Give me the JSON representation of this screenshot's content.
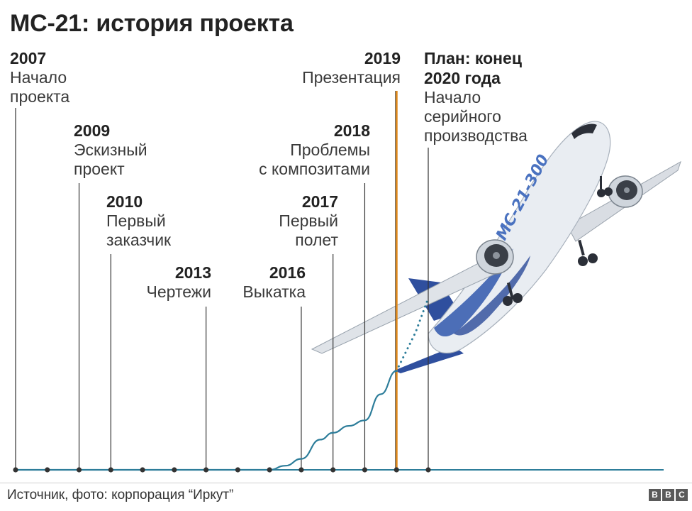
{
  "title": "МС-21: история проекта",
  "source": "Источник, фото: корпорация “Иркут”",
  "brand": [
    "B",
    "B",
    "C"
  ],
  "colors": {
    "curve": "#2d7d9a",
    "axis": "#2d7d9a",
    "presentation_line": "#e0891a",
    "tick": "#333333",
    "plane_body": "#e9edf2",
    "plane_blue": "#2f4f9e"
  },
  "milestones": [
    {
      "year": "2007",
      "label": "Начало\nпроекта"
    },
    {
      "year": "2009",
      "label": "Эскизный\nпроект"
    },
    {
      "year": "2010",
      "label": "Первый\nзаказчик"
    },
    {
      "year": "2013",
      "label": "Чертежи"
    },
    {
      "year": "2016",
      "label": "Выкатка"
    },
    {
      "year": "2017",
      "label": "Первый\nполет"
    },
    {
      "year": "2018",
      "label": "Проблемы\nс композитами"
    },
    {
      "year": "2019",
      "label": "Презентация"
    },
    {
      "year": "План: конец\n2020 года",
      "label": "Начало\nсерийного\nпроизводства"
    }
  ],
  "chart_data": {
    "type": "line",
    "title": "МС-21: история проекта",
    "x": [
      2007,
      2008,
      2009,
      2010,
      2011,
      2012,
      2013,
      2014,
      2015,
      2016,
      2017,
      2018,
      2019,
      2020
    ],
    "progress_solid": [
      [
        2007,
        0
      ],
      [
        2015,
        0
      ],
      [
        2015.5,
        0.03
      ],
      [
        2016,
        0.08
      ],
      [
        2016.6,
        0.22
      ],
      [
        2017,
        0.27
      ],
      [
        2017.5,
        0.32
      ],
      [
        2018,
        0.36
      ],
      [
        2018.5,
        0.55
      ],
      [
        2019,
        0.72
      ]
    ],
    "progress_dotted": [
      [
        2019,
        0.72
      ],
      [
        2019.6,
        1.0
      ],
      [
        2020,
        1.25
      ]
    ],
    "tick_years": [
      2007,
      2008,
      2009,
      2010,
      2011,
      2012,
      2013,
      2014,
      2015,
      2016,
      2017,
      2018,
      2019,
      2020
    ],
    "highlight_year": 2019,
    "grid": false,
    "legend": "none"
  },
  "plane": {
    "livery_text": "MC-21-300"
  }
}
